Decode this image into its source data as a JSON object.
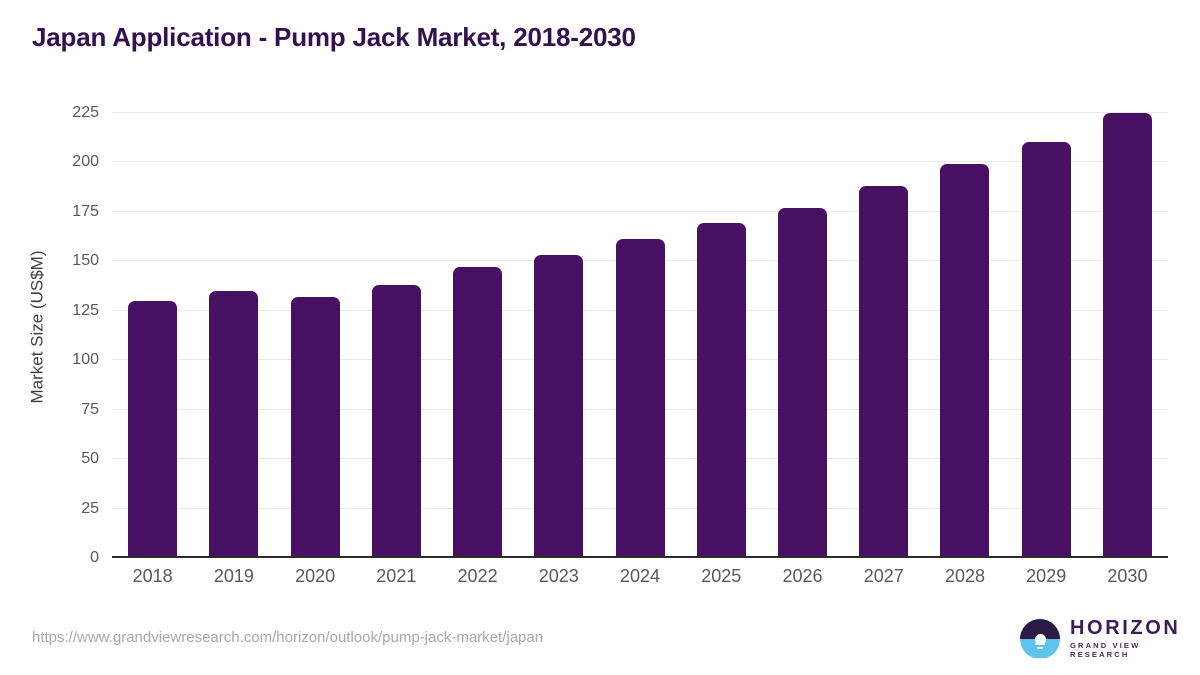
{
  "title": "Japan Application - Pump Jack Market, 2018-2030",
  "chart_data": {
    "type": "bar",
    "title": "Japan Application - Pump Jack Market, 2018-2030",
    "categories": [
      "2018",
      "2019",
      "2020",
      "2021",
      "2022",
      "2023",
      "2024",
      "2025",
      "2026",
      "2027",
      "2028",
      "2029",
      "2030"
    ],
    "values": [
      130,
      135,
      132,
      138,
      147,
      153,
      161,
      169,
      177,
      188,
      199,
      210,
      225
    ],
    "xlabel": "",
    "ylabel": "Market Size (US$M)",
    "ylim": [
      0,
      225
    ],
    "yticks": [
      0,
      25,
      50,
      75,
      100,
      125,
      150,
      175,
      200,
      225
    ],
    "grid": "horizontal",
    "legend": "none",
    "bar_color": "#481063"
  },
  "footer": {
    "source_url": "https://www.grandviewresearch.com/horizon/outlook/pump-jack-market/japan",
    "logo": {
      "name": "HORIZON",
      "subtitle": "GRAND VIEW RESEARCH",
      "icon": "sunset-over-water-circle"
    }
  },
  "colors": {
    "bar": "#481063",
    "title_text": "#34104e",
    "axis_text": "#3f3f3f",
    "tick_text": "#595959",
    "grid_line": "#e8e8e8",
    "axis_line": "#2b2b2b",
    "url_text": "#a8a8a8",
    "logo_navy": "#2a1a45",
    "logo_blue": "#5ec3ed",
    "logo_text": "#3c1b59",
    "logo_subtext": "#4a2766"
  }
}
